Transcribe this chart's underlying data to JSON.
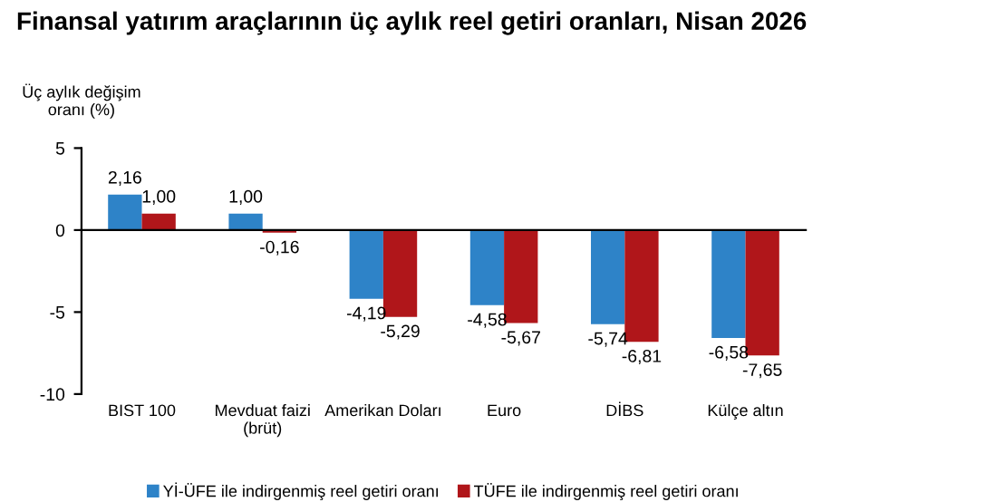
{
  "chart_data": {
    "type": "bar",
    "title": "Finansal yatırım araçlarının üç aylık reel getiri oranları, Nisan 2026",
    "ylabel": "Üç aylık değişim\noranı (%)",
    "categories": [
      "BIST 100",
      "Mevduat faizi\n(brüt)",
      "Amerikan Doları",
      "Euro",
      "DİBS",
      "Külçe altın"
    ],
    "series": [
      {
        "name": "Yİ-ÜFE ile indirgenmiş reel getiri oranı",
        "color": "#2e83c8",
        "values": [
          2.16,
          1.0,
          -4.19,
          -4.58,
          -5.74,
          -6.58
        ],
        "value_labels": [
          "2,16",
          "1,00",
          "-4,19",
          "-4,58",
          "-5,74",
          "-6,58"
        ]
      },
      {
        "name": "TÜFE ile indirgenmiş reel getiri oranı",
        "color": "#b0161a",
        "values": [
          1.0,
          -0.16,
          -5.29,
          -5.67,
          -6.81,
          -7.65
        ],
        "value_labels": [
          "1,00",
          "-0,16",
          "-5,29",
          "-5,67",
          "-6,81",
          "-7,65"
        ]
      }
    ],
    "ylim": [
      -10,
      5
    ],
    "yticks": [
      {
        "value": -10,
        "label": "-10"
      },
      {
        "value": -5,
        "label": "-5"
      },
      0,
      5
    ],
    "legend": "bottom"
  }
}
